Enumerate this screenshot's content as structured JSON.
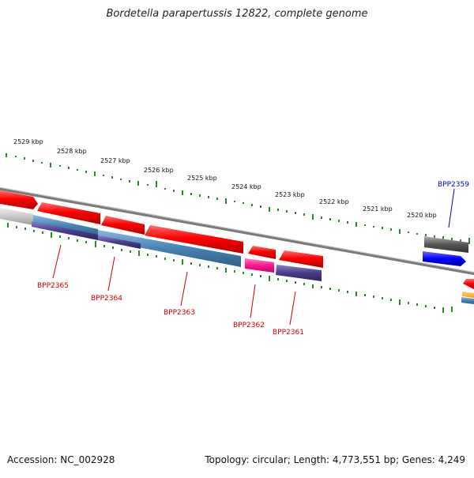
{
  "title": "Bordetella parapertussis 12822, complete genome",
  "footer": {
    "accession": "Accession: NC_002928",
    "info": "Topology: circular; Length: 4,773,551 bp; Genes: 4,249"
  },
  "scale_labels": [
    "2529 kbp",
    "2528 kbp",
    "2527 kbp",
    "2526 kbp",
    "2525 kbp",
    "2524 kbp",
    "2523 kbp",
    "2522 kbp",
    "2521 kbp",
    "2520 kbp"
  ],
  "gene_labels": [
    "BPP2365",
    "BPP2364",
    "BPP2363",
    "BPP2362",
    "BPP2361",
    "BPP2359"
  ],
  "colors": {
    "cds": "#ff0000",
    "gene_label_red": "#cc0000",
    "gene_label_blue": "#0000cc",
    "tick": "#2a8a2a",
    "backbone": "#808080",
    "rna_blue": "#4682b4",
    "rna_purple": "#483d8b",
    "rna_magenta": "#ff1493",
    "grey_feature": "#505050",
    "blue_feature": "#0000ff",
    "orange_feature": "#ffa500"
  }
}
